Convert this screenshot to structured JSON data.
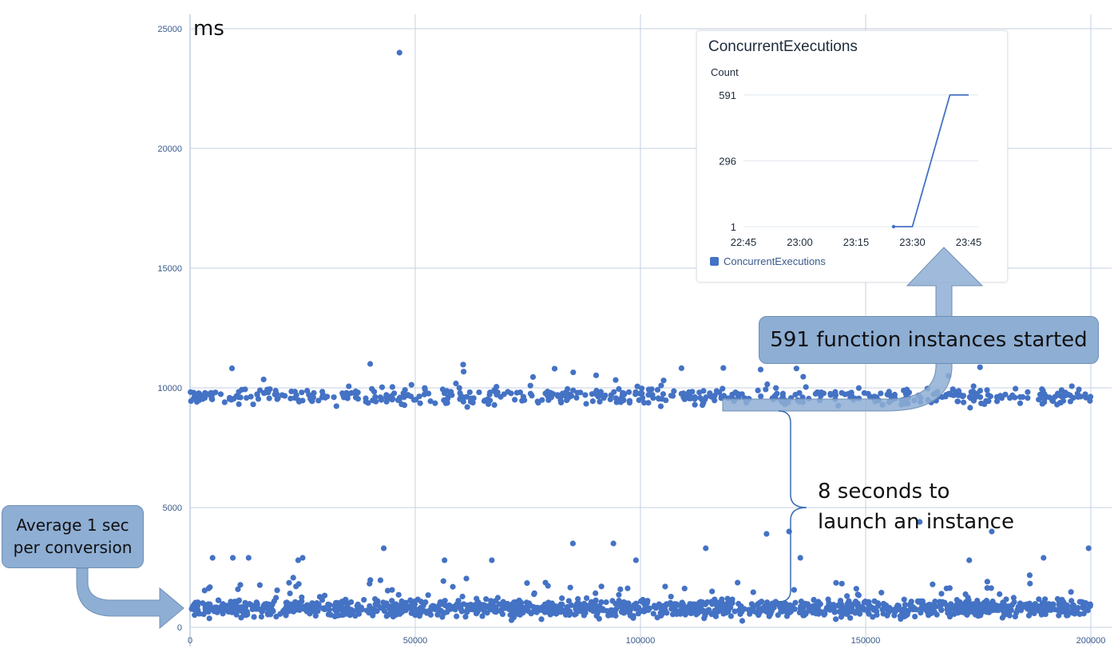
{
  "chart_data": [
    {
      "type": "scatter",
      "title": "",
      "xlabel": "",
      "ylabel": "ms",
      "xlim": [
        0,
        200000
      ],
      "ylim": [
        0,
        25000
      ],
      "x_ticks": [
        "0",
        "50000",
        "100000",
        "150000",
        "200000"
      ],
      "y_ticks": [
        "0",
        "5000",
        "10000",
        "15000",
        "20000",
        "25000"
      ],
      "grid": true,
      "series": [
        {
          "color": "#4472c4",
          "clusters": [
            {
              "x_range": [
                0,
                200000
              ],
              "center": 800,
              "spread": 250,
              "count": 1400
            },
            {
              "x_range": [
                0,
                200000
              ],
              "center": 9650,
              "spread": 260,
              "count": 540
            }
          ],
          "points": [
            [
              46500,
              24000
            ],
            [
              40000,
              11000
            ],
            [
              128000,
              3900
            ],
            [
              133000,
              4000
            ],
            [
              178000,
              4000
            ],
            [
              162000,
              4400
            ],
            [
              199500,
              3300
            ],
            [
              85000,
              3500
            ],
            [
              94000,
              3500
            ],
            [
              43000,
              3300
            ],
            [
              114500,
              3300
            ],
            [
              5000,
              2900
            ],
            [
              9500,
              2900
            ],
            [
              13000,
              2900
            ],
            [
              24000,
              2800
            ],
            [
              25000,
              2900
            ],
            [
              56500,
              2800
            ],
            [
              67000,
              2800
            ],
            [
              99000,
              2800
            ],
            [
              135500,
              2900
            ],
            [
              173000,
              2800
            ],
            [
              189500,
              2900
            ]
          ]
        }
      ]
    },
    {
      "type": "line",
      "title": "ConcurrentExecutions",
      "ylabel": "Count",
      "x": [
        "22:45",
        "23:00",
        "23:15",
        "23:30",
        "23:45"
      ],
      "y_ticks": [
        "1",
        "296",
        "591"
      ],
      "ylim": [
        1,
        591
      ],
      "series": [
        {
          "name": "ConcurrentExecutions",
          "color": "#4472c4",
          "points": [
            [
              "23:25",
              1
            ],
            [
              "23:30",
              1
            ],
            [
              "23:35",
              296
            ],
            [
              "23:40",
              591
            ],
            [
              "23:45",
              591
            ]
          ]
        }
      ],
      "legend": "bottom-left"
    }
  ],
  "annotations": {
    "instances_started": "591 function instances started",
    "launch_line1": "8 seconds to",
    "launch_line2": "launch an instance",
    "average_line1": "Average 1 sec",
    "average_line2": "per conversion"
  }
}
